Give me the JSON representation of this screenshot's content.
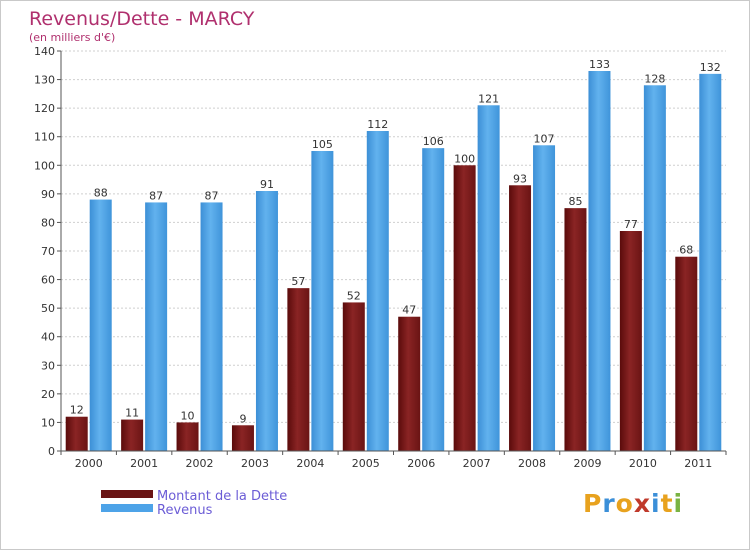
{
  "title": "Revenus/Dette - MARCY",
  "subtitle": "(en milliers d'€)",
  "logo_text": "Proxiti",
  "colors": {
    "title": "#b0306e",
    "legend_text": "#6b5cd6",
    "debt": "#7a1a1a",
    "revenue": "#4da3e8",
    "axis": "#555555",
    "grid": "#cfcfcf",
    "tick_text": "#333333"
  },
  "chart_data": {
    "type": "bar",
    "title": "Revenus/Dette - MARCY",
    "subtitle": "(en milliers d'€)",
    "categories": [
      "2000",
      "2001",
      "2002",
      "2003",
      "2004",
      "2005",
      "2006",
      "2007",
      "2008",
      "2009",
      "2010",
      "2011"
    ],
    "series": [
      {
        "name": "Montant de la Dette",
        "values": [
          12,
          11,
          10,
          9,
          57,
          52,
          47,
          100,
          93,
          85,
          77,
          68
        ]
      },
      {
        "name": "Revenus",
        "values": [
          88,
          87,
          87,
          91,
          105,
          112,
          106,
          121,
          107,
          133,
          128,
          132
        ]
      }
    ],
    "ylim": [
      0,
      140
    ],
    "yticks": [
      0,
      10,
      20,
      30,
      40,
      50,
      60,
      70,
      80,
      90,
      100,
      110,
      120,
      130,
      140
    ],
    "grid": true,
    "legend": "bottom-left",
    "data_labels": true
  }
}
